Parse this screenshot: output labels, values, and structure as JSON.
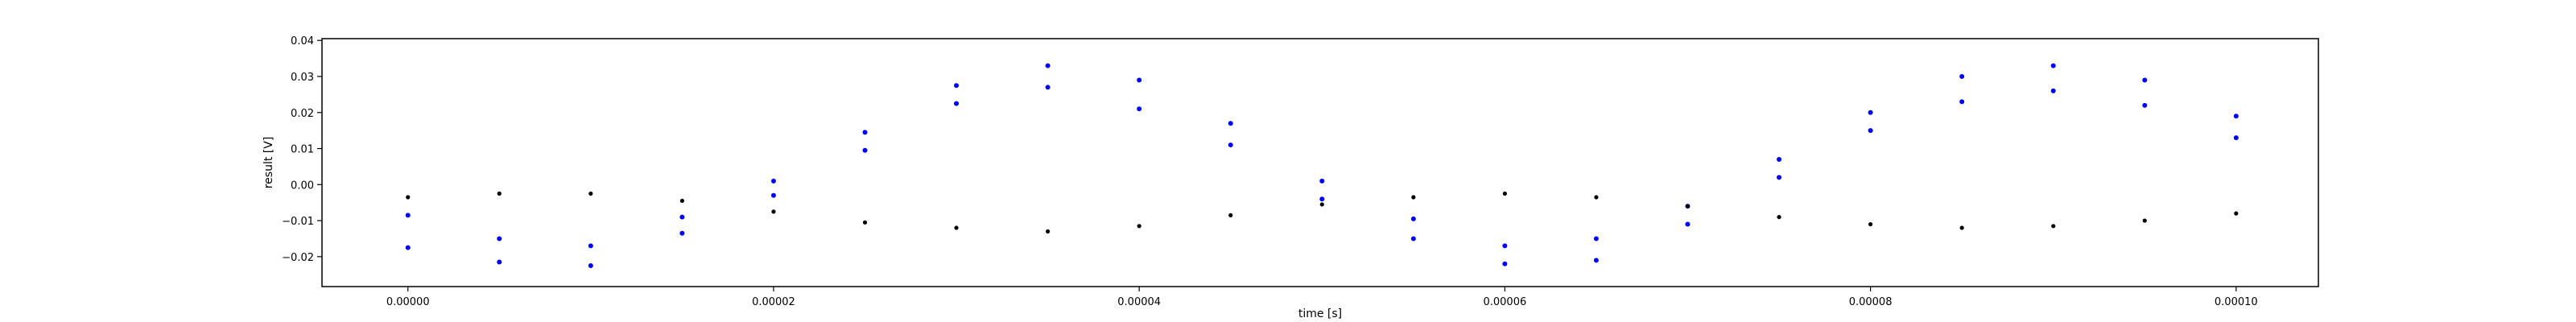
{
  "chart_data": {
    "type": "scatter",
    "title": "",
    "xlabel": "time [s]",
    "ylabel": "result [V]",
    "xlim": [
      -4.7e-06,
      0.0001045
    ],
    "ylim": [
      -0.0283,
      0.0405
    ],
    "grid": false,
    "x_ticks": [
      0.0,
      2e-05,
      4e-05,
      6e-05,
      8e-05,
      0.0001
    ],
    "x_tick_labels": [
      "0.00000",
      "0.00002",
      "0.00004",
      "0.00006",
      "0.00008",
      "0.00010"
    ],
    "y_ticks": [
      -0.02,
      -0.01,
      0.0,
      0.01,
      0.02,
      0.03,
      0.04
    ],
    "y_tick_labels": [
      "−0.02",
      "−0.01",
      "0.00",
      "0.01",
      "0.02",
      "0.03",
      "0.04"
    ],
    "series": [
      {
        "color": "#0000ff",
        "marker": "dot",
        "points": [
          {
            "x": 0.0,
            "y": -0.0085
          },
          {
            "x": 0.0,
            "y": -0.0175
          },
          {
            "x": 5e-06,
            "y": -0.015
          },
          {
            "x": 5e-06,
            "y": -0.0215
          },
          {
            "x": 1e-05,
            "y": -0.017
          },
          {
            "x": 1e-05,
            "y": -0.0225
          },
          {
            "x": 1.5e-05,
            "y": -0.009
          },
          {
            "x": 1.5e-05,
            "y": -0.0135
          },
          {
            "x": 2e-05,
            "y": 0.001
          },
          {
            "x": 2e-05,
            "y": -0.003
          },
          {
            "x": 2.5e-05,
            "y": 0.0145
          },
          {
            "x": 2.5e-05,
            "y": 0.0095
          },
          {
            "x": 3e-05,
            "y": 0.0275
          },
          {
            "x": 3e-05,
            "y": 0.0225
          },
          {
            "x": 3.5e-05,
            "y": 0.033
          },
          {
            "x": 3.5e-05,
            "y": 0.027
          },
          {
            "x": 4e-05,
            "y": 0.029
          },
          {
            "x": 4e-05,
            "y": 0.021
          },
          {
            "x": 4.5e-05,
            "y": 0.017
          },
          {
            "x": 4.5e-05,
            "y": 0.011
          },
          {
            "x": 5e-05,
            "y": 0.001
          },
          {
            "x": 5e-05,
            "y": -0.004
          },
          {
            "x": 5.5e-05,
            "y": -0.0095
          },
          {
            "x": 5.5e-05,
            "y": -0.015
          },
          {
            "x": 6e-05,
            "y": -0.017
          },
          {
            "x": 6e-05,
            "y": -0.022
          },
          {
            "x": 6.5e-05,
            "y": -0.015
          },
          {
            "x": 6.5e-05,
            "y": -0.021
          },
          {
            "x": 7e-05,
            "y": -0.006
          },
          {
            "x": 7e-05,
            "y": -0.011
          },
          {
            "x": 7.5e-05,
            "y": 0.007
          },
          {
            "x": 7.5e-05,
            "y": 0.002
          },
          {
            "x": 8e-05,
            "y": 0.02
          },
          {
            "x": 8e-05,
            "y": 0.015
          },
          {
            "x": 8.5e-05,
            "y": 0.03
          },
          {
            "x": 8.5e-05,
            "y": 0.023
          },
          {
            "x": 9e-05,
            "y": 0.033
          },
          {
            "x": 9e-05,
            "y": 0.026
          },
          {
            "x": 9.5e-05,
            "y": 0.029
          },
          {
            "x": 9.5e-05,
            "y": 0.022
          },
          {
            "x": 0.0001,
            "y": 0.019
          },
          {
            "x": 0.0001,
            "y": 0.013
          }
        ]
      },
      {
        "color": "#000000",
        "marker": "dot",
        "points": [
          {
            "x": 0.0,
            "y": -0.0035
          },
          {
            "x": 5e-06,
            "y": -0.0025
          },
          {
            "x": 1e-05,
            "y": -0.0025
          },
          {
            "x": 1.5e-05,
            "y": -0.0045
          },
          {
            "x": 2e-05,
            "y": -0.0075
          },
          {
            "x": 2.5e-05,
            "y": -0.0105
          },
          {
            "x": 3e-05,
            "y": -0.012
          },
          {
            "x": 3.5e-05,
            "y": -0.013
          },
          {
            "x": 4e-05,
            "y": -0.0115
          },
          {
            "x": 4.5e-05,
            "y": -0.0085
          },
          {
            "x": 5e-05,
            "y": -0.0055
          },
          {
            "x": 5.5e-05,
            "y": -0.0035
          },
          {
            "x": 6e-05,
            "y": -0.0025
          },
          {
            "x": 6.5e-05,
            "y": -0.0035
          },
          {
            "x": 7e-05,
            "y": -0.006
          },
          {
            "x": 7.5e-05,
            "y": -0.009
          },
          {
            "x": 8e-05,
            "y": -0.011
          },
          {
            "x": 8.5e-05,
            "y": -0.012
          },
          {
            "x": 9e-05,
            "y": -0.0115
          },
          {
            "x": 9.5e-05,
            "y": -0.01
          },
          {
            "x": 0.0001,
            "y": -0.008
          }
        ]
      }
    ]
  }
}
